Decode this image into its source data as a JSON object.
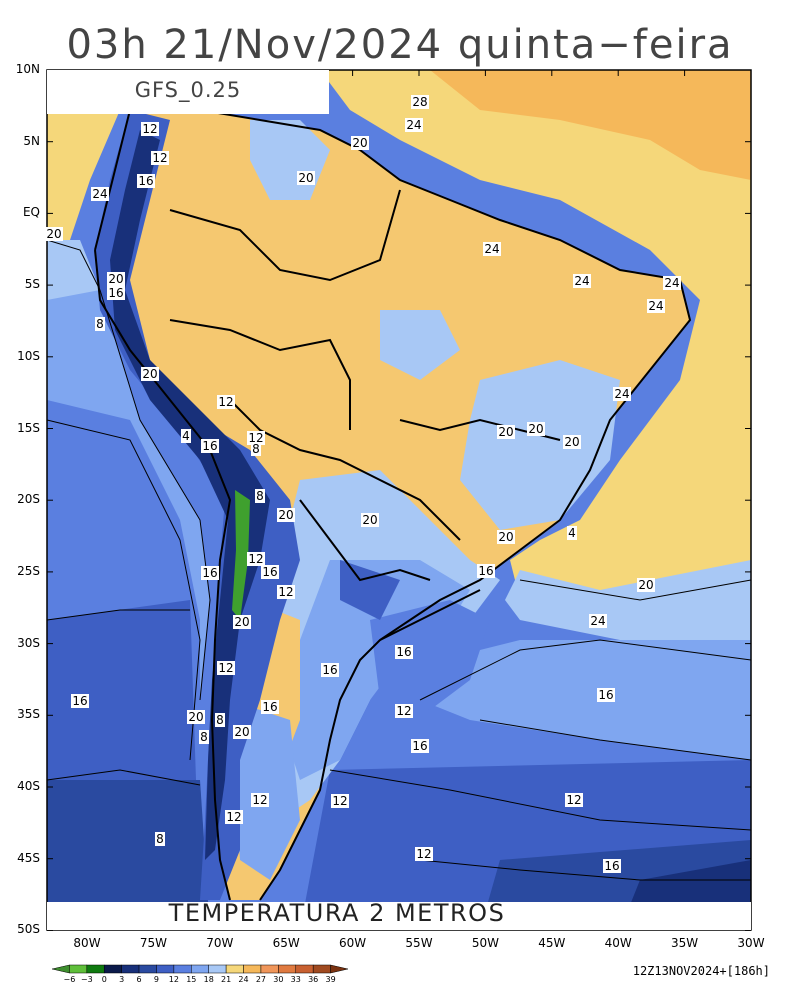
{
  "title": "03h 21/Nov/2024 quinta−feira",
  "model_label": "GFS_0.25",
  "bottom_label": "TEMPERATURA 2 METROS",
  "run_info": "12Z13NOV2024+[186h]",
  "lat_labels": [
    "10N",
    "5N",
    "EQ",
    "5S",
    "10S",
    "15S",
    "20S",
    "25S",
    "30S",
    "35S",
    "40S",
    "45S",
    "50S"
  ],
  "lon_labels": [
    "80W",
    "75W",
    "70W",
    "65W",
    "60W",
    "55W",
    "50W",
    "45W",
    "40W",
    "35W",
    "30W"
  ],
  "colorbar": {
    "ticks": [
      "−6",
      "−3",
      "0",
      "3",
      "6",
      "9",
      "12",
      "15",
      "18",
      "21",
      "24",
      "27",
      "30",
      "33",
      "36",
      "39"
    ],
    "colors": [
      "#3e8e2e",
      "#5fbf3a",
      "#0f7a0f",
      "#0b1a4a",
      "#18307a",
      "#2a4aa0",
      "#3e5fc4",
      "#5a7fe0",
      "#7fa6f0",
      "#a8c8f5",
      "#f5d77a",
      "#f5b85a",
      "#f0965a",
      "#e07a40",
      "#c86030",
      "#a04a20",
      "#7a3210"
    ]
  },
  "contour_labels": [
    "28",
    "24",
    "20",
    "20",
    "12",
    "12",
    "16",
    "24",
    "20",
    "24",
    "24",
    "24",
    "24",
    "20",
    "16",
    "8",
    "20",
    "12",
    "4",
    "16",
    "12",
    "8",
    "8",
    "20",
    "24",
    "20",
    "20",
    "20",
    "20",
    "20",
    "4",
    "12",
    "16",
    "16",
    "16",
    "20",
    "24",
    "12",
    "16",
    "16",
    "20",
    "12",
    "16",
    "12",
    "20",
    "8",
    "16",
    "8",
    "20",
    "16",
    "16",
    "12",
    "12",
    "12",
    "12",
    "8",
    "12",
    "16"
  ],
  "map_colors": {
    "ocean_warm": "#f5d77a",
    "ocean_mid": "#a8c8f5",
    "ocean_cool": "#7fa6f0",
    "ocean_cold": "#5a7fe0",
    "ocean_colder": "#3e5fc4",
    "ocean_coldest": "#2a4aa0",
    "land_hot": "#f5b85a",
    "land_warm": "#f5c870",
    "andes": "#18307a"
  }
}
